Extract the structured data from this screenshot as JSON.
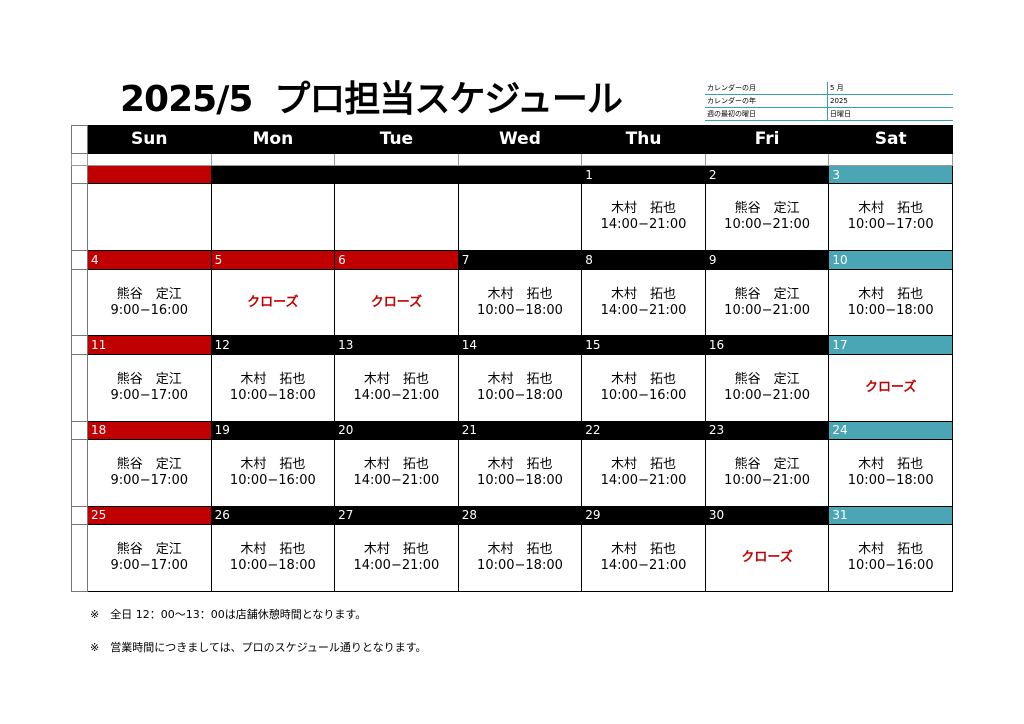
{
  "title": "2025/5  プロ担当スケジュール",
  "title_parts": [
    "2025/5",
    "プロ担当スケジュール"
  ],
  "info": [
    {
      "label": "カレンダーの月",
      "value": "5 月"
    },
    {
      "label": "カレンダーの年",
      "value": "2025"
    },
    {
      "label": "週の最初の曜日",
      "value": "日曜日"
    }
  ],
  "weekdays": [
    "Sun",
    "Mon",
    "Tue",
    "Wed",
    "Thu",
    "Fri",
    "Sat"
  ],
  "colors": {
    "header": "#000000",
    "sunday_holiday": "#c00000",
    "saturday": "#4aa5b5",
    "closed_text": "#c00000"
  },
  "weeks": [
    {
      "days": [
        {
          "num": "",
          "color": "red",
          "name": "",
          "time": "",
          "closed": ""
        },
        {
          "num": "",
          "color": "black",
          "name": "",
          "time": "",
          "closed": ""
        },
        {
          "num": "",
          "color": "black",
          "name": "",
          "time": "",
          "closed": ""
        },
        {
          "num": "",
          "color": "black",
          "name": "",
          "time": "",
          "closed": ""
        },
        {
          "num": "1",
          "color": "black",
          "name": "木村　拓也",
          "time": "14:00−21:00",
          "closed": ""
        },
        {
          "num": "2",
          "color": "black",
          "name": "熊谷　定江",
          "time": "10:00−21:00",
          "closed": ""
        },
        {
          "num": "3",
          "color": "teal",
          "name": "木村　拓也",
          "time": "10:00−17:00",
          "closed": ""
        }
      ]
    },
    {
      "days": [
        {
          "num": "4",
          "color": "red",
          "name": "熊谷　定江",
          "time": "9:00−16:00",
          "closed": ""
        },
        {
          "num": "5",
          "color": "red",
          "name": "",
          "time": "",
          "closed": "クローズ"
        },
        {
          "num": "6",
          "color": "red",
          "name": "",
          "time": "",
          "closed": "クローズ"
        },
        {
          "num": "7",
          "color": "black",
          "name": "木村　拓也",
          "time": "10:00−18:00",
          "closed": ""
        },
        {
          "num": "8",
          "color": "black",
          "name": "木村　拓也",
          "time": "14:00−21:00",
          "closed": ""
        },
        {
          "num": "9",
          "color": "black",
          "name": "熊谷　定江",
          "time": "10:00−21:00",
          "closed": ""
        },
        {
          "num": "10",
          "color": "teal",
          "name": "木村　拓也",
          "time": "10:00−18:00",
          "closed": ""
        }
      ]
    },
    {
      "days": [
        {
          "num": "11",
          "color": "red",
          "name": "熊谷　定江",
          "time": "9:00−17:00",
          "closed": ""
        },
        {
          "num": "12",
          "color": "black",
          "name": "木村　拓也",
          "time": "10:00−18:00",
          "closed": ""
        },
        {
          "num": "13",
          "color": "black",
          "name": "木村　拓也",
          "time": "14:00−21:00",
          "closed": ""
        },
        {
          "num": "14",
          "color": "black",
          "name": "木村　拓也",
          "time": "10:00−18:00",
          "closed": ""
        },
        {
          "num": "15",
          "color": "black",
          "name": "木村　拓也",
          "time": "10:00−16:00",
          "closed": ""
        },
        {
          "num": "16",
          "color": "black",
          "name": "熊谷　定江",
          "time": "10:00−21:00",
          "closed": ""
        },
        {
          "num": "17",
          "color": "teal",
          "name": "",
          "time": "",
          "closed": "クローズ"
        }
      ]
    },
    {
      "days": [
        {
          "num": "18",
          "color": "red",
          "name": "熊谷　定江",
          "time": "9:00−17:00",
          "closed": ""
        },
        {
          "num": "19",
          "color": "black",
          "name": "木村　拓也",
          "time": "10:00−16:00",
          "closed": ""
        },
        {
          "num": "20",
          "color": "black",
          "name": "木村　拓也",
          "time": "14:00−21:00",
          "closed": ""
        },
        {
          "num": "21",
          "color": "black",
          "name": "木村　拓也",
          "time": "10:00−18:00",
          "closed": ""
        },
        {
          "num": "22",
          "color": "black",
          "name": "木村　拓也",
          "time": "14:00−21:00",
          "closed": ""
        },
        {
          "num": "23",
          "color": "black",
          "name": "熊谷　定江",
          "time": "10:00−21:00",
          "closed": ""
        },
        {
          "num": "24",
          "color": "teal",
          "name": "木村　拓也",
          "time": "10:00−18:00",
          "closed": ""
        }
      ]
    },
    {
      "days": [
        {
          "num": "25",
          "color": "red",
          "name": "熊谷　定江",
          "time": "9:00−17:00",
          "closed": ""
        },
        {
          "num": "26",
          "color": "black",
          "name": "木村　拓也",
          "time": "10:00−18:00",
          "closed": ""
        },
        {
          "num": "27",
          "color": "black",
          "name": "木村　拓也",
          "time": "14:00−21:00",
          "closed": ""
        },
        {
          "num": "28",
          "color": "black",
          "name": "木村　拓也",
          "time": "10:00−18:00",
          "closed": ""
        },
        {
          "num": "29",
          "color": "black",
          "name": "木村　拓也",
          "time": "14:00−21:00",
          "closed": ""
        },
        {
          "num": "30",
          "color": "black",
          "name": "",
          "time": "",
          "closed": "クローズ"
        },
        {
          "num": "31",
          "color": "teal",
          "name": "木村　拓也",
          "time": "10:00−16:00",
          "closed": ""
        }
      ]
    }
  ],
  "notes": [
    "※　全日 12：00～13：00は店舗休憩時間となります。",
    "※　営業時間につきましては、プロのスケジュール通りとなります。"
  ]
}
